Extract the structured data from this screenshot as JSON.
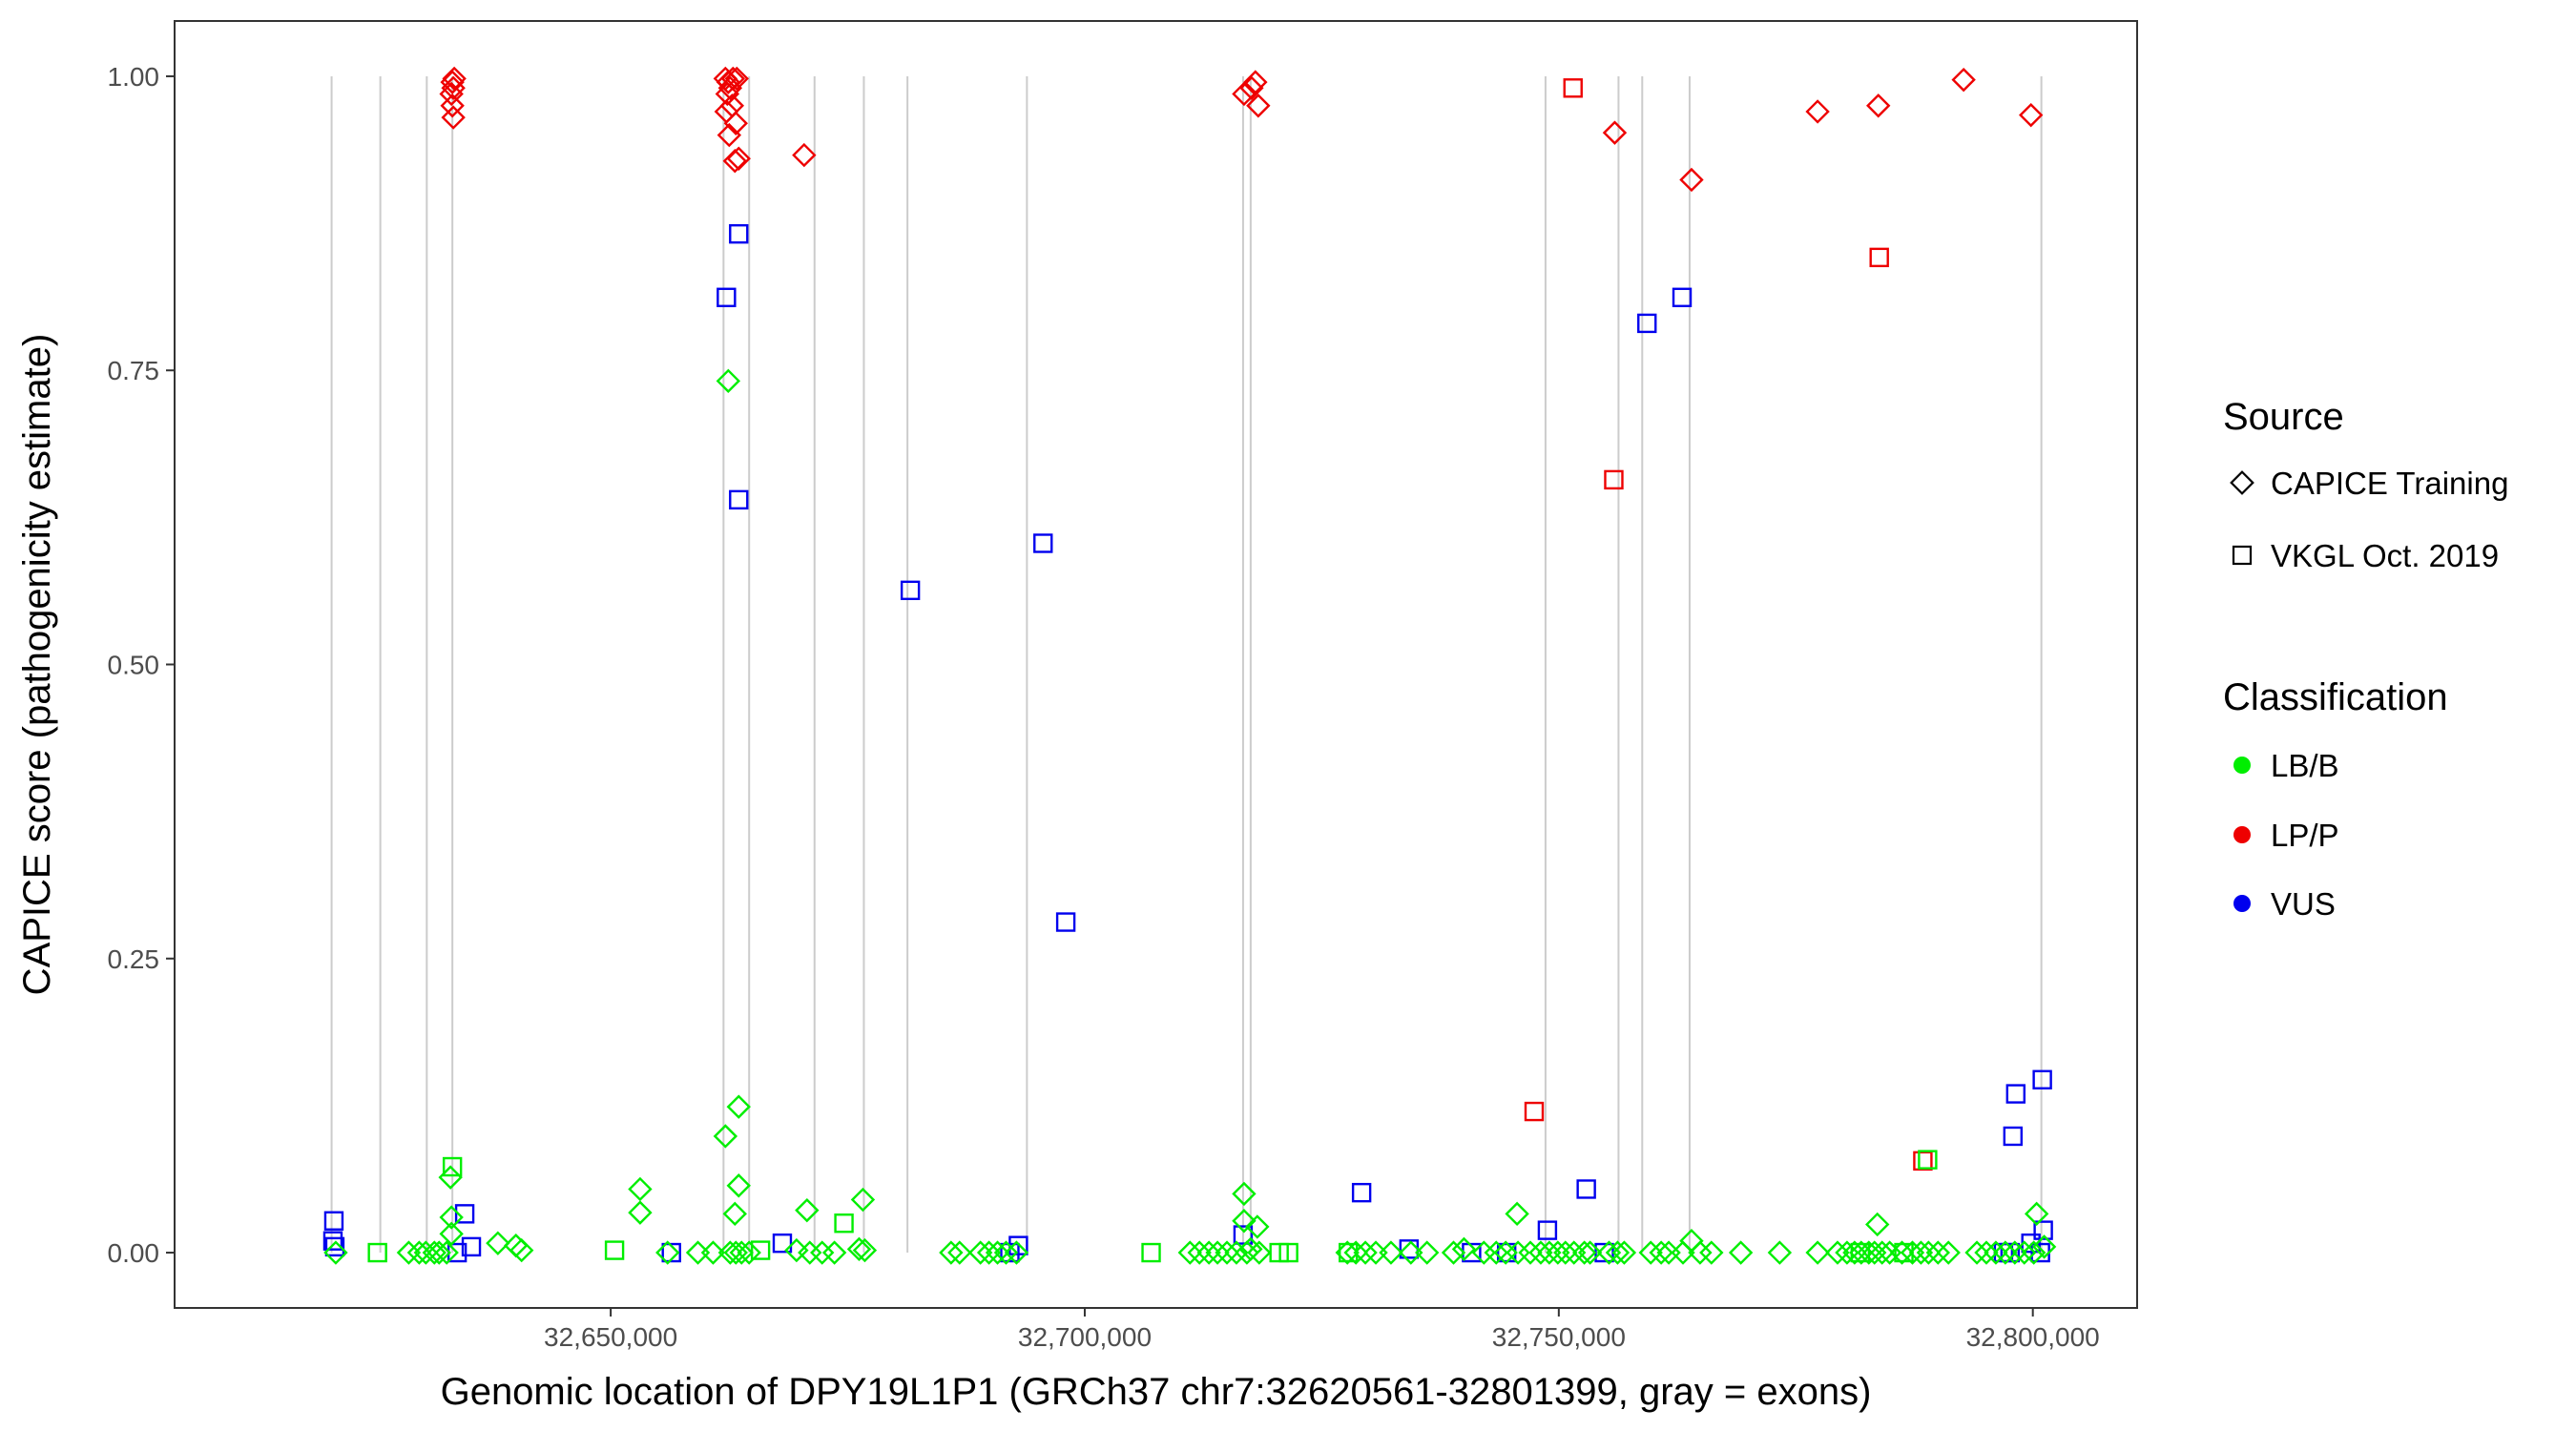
{
  "chart_data": {
    "type": "scatter",
    "xlabel": "Genomic location of DPY19L1P1 (GRCh37 chr7:32620561-32801399, gray = exons)",
    "ylabel": "CAPICE score (pathogenicity estimate)",
    "xlim": [
      32604000,
      32811000
    ],
    "ylim": [
      -0.047,
      1.047
    ],
    "x_ticks": [
      32650000,
      32700000,
      32750000,
      32800000
    ],
    "x_tick_labels": [
      "32,650,000",
      "32,700,000",
      "32,750,000",
      "32,800,000"
    ],
    "y_ticks": [
      0,
      0.25,
      0.5,
      0.75,
      1.0
    ],
    "y_tick_labels": [
      "0.00",
      "0.25",
      "0.50",
      "0.75",
      "1.00"
    ],
    "exons": [
      32620561,
      32625700,
      32630600,
      32633300,
      32661900,
      32664600,
      32671500,
      32676700,
      32681300,
      32693900,
      32716700,
      32717500,
      32748600,
      32756300,
      32758800,
      32763800,
      32800900
    ],
    "legend": {
      "shape_title": "Source",
      "shape_entries": [
        {
          "shape": "diamond",
          "label": "CAPICE Training"
        },
        {
          "shape": "square",
          "label": "VKGL Oct. 2019"
        }
      ],
      "color_title": "Classification",
      "color_entries": [
        {
          "class": "LB/B",
          "label": "LB/B",
          "color": "#00ee00"
        },
        {
          "class": "LP/P",
          "label": "LP/P",
          "color": "#ee0000"
        },
        {
          "class": "VUS",
          "label": "VUS",
          "color": "#0000ee"
        }
      ]
    },
    "series": [
      {
        "name": "CAPICE Training LP/P",
        "source": "CAPICE Training",
        "class": "LP/P",
        "points": [
          [
            32633300,
            0.995
          ],
          [
            32633400,
            0.99
          ],
          [
            32633200,
            0.985
          ],
          [
            32633300,
            0.975
          ],
          [
            32633400,
            0.965
          ],
          [
            32633500,
            0.998
          ],
          [
            32662100,
            0.998
          ],
          [
            32662400,
            0.995
          ],
          [
            32662600,
            0.99
          ],
          [
            32662900,
            0.998
          ],
          [
            32663300,
            0.998
          ],
          [
            32662300,
            0.985
          ],
          [
            32662800,
            0.975
          ],
          [
            32662200,
            0.97
          ],
          [
            32663200,
            0.96
          ],
          [
            32662500,
            0.95
          ],
          [
            32663500,
            0.93
          ],
          [
            32663100,
            0.928
          ],
          [
            32670400,
            0.933
          ],
          [
            32716800,
            0.985
          ],
          [
            32717600,
            0.99
          ],
          [
            32718000,
            0.995
          ],
          [
            32718300,
            0.975
          ],
          [
            32755900,
            0.952
          ],
          [
            32764000,
            0.912
          ],
          [
            32777300,
            0.97
          ],
          [
            32783700,
            0.975
          ],
          [
            32792700,
            0.997
          ],
          [
            32799800,
            0.967
          ]
        ]
      },
      {
        "name": "VKGL LP/P",
        "source": "VKGL Oct. 2019",
        "class": "LP/P",
        "points": [
          [
            32751500,
            0.99
          ],
          [
            32755800,
            0.657
          ],
          [
            32747400,
            0.12
          ],
          [
            32783800,
            0.846
          ],
          [
            32788400,
            0.078
          ]
        ]
      },
      {
        "name": "VKGL VUS",
        "source": "VKGL Oct. 2019",
        "class": "VUS",
        "points": [
          [
            32663500,
            0.866
          ],
          [
            32662200,
            0.812
          ],
          [
            32663500,
            0.64
          ],
          [
            32681600,
            0.563
          ],
          [
            32695600,
            0.603
          ],
          [
            32698000,
            0.281
          ],
          [
            32759300,
            0.79
          ],
          [
            32763000,
            0.812
          ],
          [
            32801000,
            0.147
          ],
          [
            32798200,
            0.135
          ],
          [
            32797900,
            0.099
          ],
          [
            32620800,
            0.027
          ],
          [
            32620700,
            0.01
          ],
          [
            32620900,
            0.005
          ],
          [
            32634600,
            0.033
          ],
          [
            32635300,
            0.005
          ],
          [
            32633800,
            0.0
          ],
          [
            32656400,
            0.0
          ],
          [
            32668100,
            0.008
          ],
          [
            32692100,
            0.0
          ],
          [
            32693000,
            0.006
          ],
          [
            32716700,
            0.015
          ],
          [
            32729200,
            0.051
          ],
          [
            32734200,
            0.003
          ],
          [
            32740800,
            0.0
          ],
          [
            32744500,
            0.0
          ],
          [
            32748800,
            0.019
          ],
          [
            32752900,
            0.054
          ],
          [
            32754800,
            0.0
          ],
          [
            32799800,
            0.008
          ],
          [
            32796900,
            0.0
          ],
          [
            32797600,
            0.0
          ],
          [
            32801100,
            0.019
          ],
          [
            32800800,
            0.0
          ]
        ]
      },
      {
        "name": "VKGL LB/B",
        "source": "VKGL Oct. 2019",
        "class": "LB/B",
        "points": [
          [
            32633300,
            0.073
          ],
          [
            32650400,
            0.002
          ],
          [
            32665800,
            0.002
          ],
          [
            32674600,
            0.025
          ],
          [
            32625400,
            0.0
          ],
          [
            32788900,
            0.079
          ],
          [
            32786400,
            0.0
          ],
          [
            32707000,
            0.0
          ],
          [
            32720500,
            0.0
          ],
          [
            32721500,
            0.0
          ],
          [
            32727800,
            0.0
          ],
          [
            32781800,
            0.0
          ]
        ]
      },
      {
        "name": "CAPICE Training LB/B",
        "source": "CAPICE Training",
        "class": "LB/B",
        "points": [
          [
            32662400,
            0.741
          ],
          [
            32663500,
            0.124
          ],
          [
            32662100,
            0.099
          ],
          [
            32663500,
            0.057
          ],
          [
            32663100,
            0.033
          ],
          [
            32670700,
            0.036
          ],
          [
            32676600,
            0.045
          ],
          [
            32653100,
            0.054
          ],
          [
            32653100,
            0.034
          ],
          [
            32633100,
            0.064
          ],
          [
            32633200,
            0.03
          ],
          [
            32633200,
            0.016
          ],
          [
            32638100,
            0.008
          ],
          [
            32640000,
            0.006
          ],
          [
            32640600,
            0.002
          ],
          [
            32716800,
            0.05
          ],
          [
            32716800,
            0.027
          ],
          [
            32718200,
            0.022
          ],
          [
            32717500,
            0.003
          ],
          [
            32745600,
            0.033
          ],
          [
            32764000,
            0.01
          ],
          [
            32783600,
            0.024
          ],
          [
            32800400,
            0.033
          ],
          [
            32801200,
            0.005
          ],
          [
            32621000,
            0.0
          ],
          [
            32628700,
            0.0
          ],
          [
            32629800,
            0.0
          ],
          [
            32630500,
            0.0
          ],
          [
            32631400,
            0.0
          ],
          [
            32631900,
            0.0
          ],
          [
            32632700,
            0.0
          ],
          [
            32656000,
            0.0
          ],
          [
            32659200,
            0.0
          ],
          [
            32660800,
            0.0
          ],
          [
            32662600,
            0.0
          ],
          [
            32663200,
            0.0
          ],
          [
            32663800,
            0.0
          ],
          [
            32664600,
            0.0
          ],
          [
            32669600,
            0.002
          ],
          [
            32671000,
            0.0
          ],
          [
            32672300,
            0.0
          ],
          [
            32673600,
            0.0
          ],
          [
            32676200,
            0.003
          ],
          [
            32676800,
            0.002
          ],
          [
            32685900,
            0.0
          ],
          [
            32686800,
            0.0
          ],
          [
            32689000,
            0.0
          ],
          [
            32689900,
            0.0
          ],
          [
            32690800,
            0.0
          ],
          [
            32691700,
            0.0
          ],
          [
            32692800,
            0.0
          ],
          [
            32711100,
            0.0
          ],
          [
            32712100,
            0.0
          ],
          [
            32713100,
            0.0
          ],
          [
            32714000,
            0.0
          ],
          [
            32715000,
            0.0
          ],
          [
            32716000,
            0.0
          ],
          [
            32717100,
            0.0
          ],
          [
            32718400,
            0.0
          ],
          [
            32727700,
            0.0
          ],
          [
            32728600,
            0.0
          ],
          [
            32729600,
            0.0
          ],
          [
            32730700,
            0.0
          ],
          [
            32732300,
            0.0
          ],
          [
            32734400,
            0.0
          ],
          [
            32736100,
            0.0
          ],
          [
            32738900,
            0.0
          ],
          [
            32740000,
            0.003
          ],
          [
            32742100,
            0.0
          ],
          [
            32743400,
            0.0
          ],
          [
            32744400,
            0.0
          ],
          [
            32745700,
            0.0
          ],
          [
            32747000,
            0.0
          ],
          [
            32748100,
            0.0
          ],
          [
            32749000,
            0.0
          ],
          [
            32749900,
            0.0
          ],
          [
            32750700,
            0.0
          ],
          [
            32751600,
            0.0
          ],
          [
            32752700,
            0.0
          ],
          [
            32753300,
            0.0
          ],
          [
            32755300,
            0.0
          ],
          [
            32756200,
            0.0
          ],
          [
            32756900,
            0.0
          ],
          [
            32759700,
            0.0
          ],
          [
            32760800,
            0.0
          ],
          [
            32761600,
            0.0
          ],
          [
            32763100,
            0.0
          ],
          [
            32764900,
            0.0
          ],
          [
            32766100,
            0.0
          ],
          [
            32769200,
            0.0
          ],
          [
            32773300,
            0.0
          ],
          [
            32777300,
            0.0
          ],
          [
            32779400,
            0.0
          ],
          [
            32780400,
            0.0
          ],
          [
            32781200,
            0.0
          ],
          [
            32781900,
            0.0
          ],
          [
            32782700,
            0.0
          ],
          [
            32783300,
            0.0
          ],
          [
            32784100,
            0.0
          ],
          [
            32784900,
            0.0
          ],
          [
            32786200,
            0.0
          ],
          [
            32787300,
            0.0
          ],
          [
            32788200,
            0.0
          ],
          [
            32789000,
            0.0
          ],
          [
            32790000,
            0.0
          ],
          [
            32791100,
            0.0
          ],
          [
            32794100,
            0.0
          ],
          [
            32795100,
            0.0
          ],
          [
            32796100,
            0.0
          ],
          [
            32797100,
            0.0
          ],
          [
            32798100,
            0.0
          ],
          [
            32799100,
            0.0
          ],
          [
            32800100,
            0.0
          ]
        ]
      }
    ]
  }
}
